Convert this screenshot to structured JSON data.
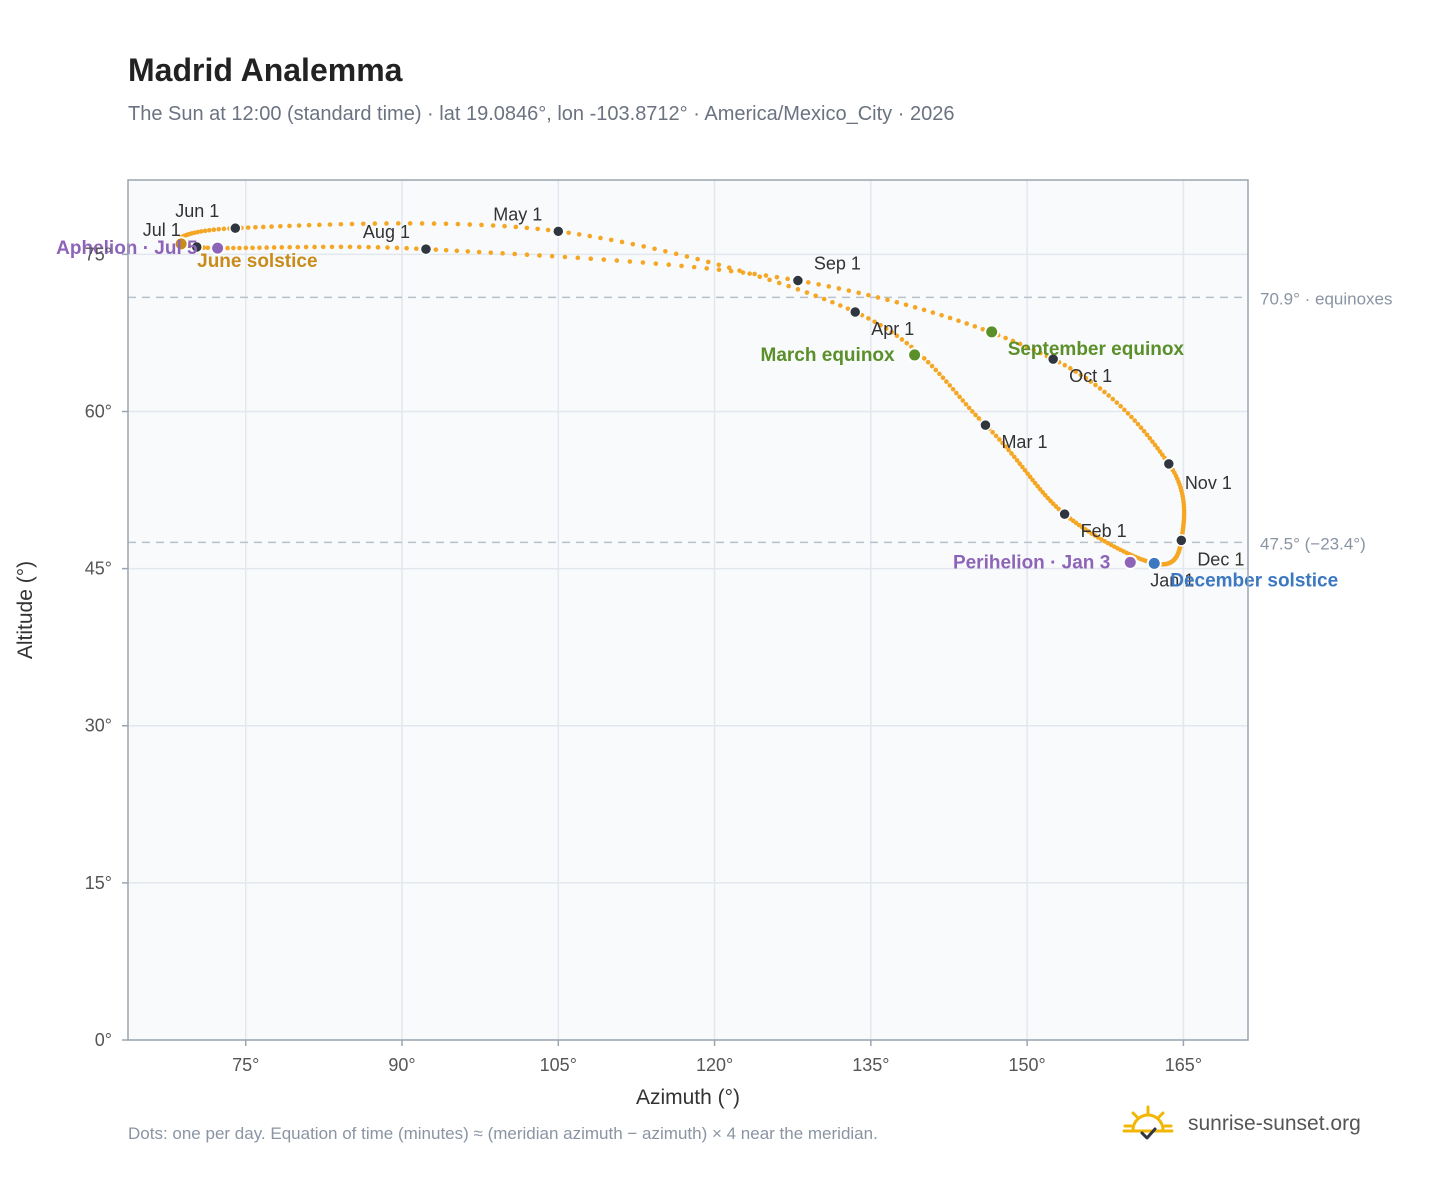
{
  "title": "Madrid Analemma",
  "subtitle": "The Sun at 12:00 (standard time) · lat 19.0846°, lon -103.8712° · America/Mexico_City · 2026",
  "footnote": "Dots: one per day. Equation of time (minutes) ≈ (meridian azimuth − azimuth) × 4 near the meridian.",
  "brand": {
    "name": "sunrise-sunset.org",
    "logo_icon": "sun-check-icon"
  },
  "colors": {
    "path": "#f5a623",
    "month_marker": "#2f3640",
    "equinox": "#5a8f29",
    "december_solstice": "#3b78c0",
    "june_solstice": "#c98b1a",
    "apsis": "#8e64b8",
    "reference_line": "#b8c2cc",
    "plot_background": "#f8fafc"
  },
  "chart_data": {
    "type": "scatter",
    "xlabel": "Azimuth (°)",
    "ylabel": "Altitude (°)",
    "xlim": [
      63.7,
      171.2
    ],
    "ylim": [
      0,
      82.1
    ],
    "xticks": [
      {
        "value": 75,
        "label": "75°"
      },
      {
        "value": 90,
        "label": "90°"
      },
      {
        "value": 105,
        "label": "105°"
      },
      {
        "value": 120,
        "label": "120°"
      },
      {
        "value": 135,
        "label": "135°"
      },
      {
        "value": 150,
        "label": "150°"
      },
      {
        "value": 165,
        "label": "165°"
      }
    ],
    "yticks": [
      {
        "value": 0,
        "label": "0°"
      },
      {
        "value": 15,
        "label": "15°"
      },
      {
        "value": 30,
        "label": "30°"
      },
      {
        "value": 45,
        "label": "45°"
      },
      {
        "value": 60,
        "label": "60°"
      },
      {
        "value": 75,
        "label": "75°"
      }
    ],
    "grid": true,
    "reference_lines": [
      {
        "altitude": 70.9,
        "label": "70.9° · equinoxes"
      },
      {
        "altitude": 47.5,
        "label": "47.5° (−23.4°)"
      }
    ],
    "month_markers": [
      {
        "label": "Jan 1",
        "day": 1,
        "az": 162.2,
        "alt": 45.5,
        "label_pos": "below"
      },
      {
        "label": "Feb 1",
        "day": 32,
        "az": 153.6,
        "alt": 50.2,
        "label_pos": "right"
      },
      {
        "label": "Mar 1",
        "day": 60,
        "az": 146.0,
        "alt": 58.7,
        "label_pos": "right"
      },
      {
        "label": "Apr 1",
        "day": 91,
        "az": 133.5,
        "alt": 69.5,
        "label_pos": "right"
      },
      {
        "label": "May 1",
        "day": 121,
        "az": 105.0,
        "alt": 77.2,
        "label_pos": "left-above"
      },
      {
        "label": "Jun 1",
        "day": 152,
        "az": 74.0,
        "alt": 77.5,
        "label_pos": "left-above"
      },
      {
        "label": "Jul 1",
        "day": 182,
        "az": 70.3,
        "alt": 75.7,
        "label_pos": "left-above"
      },
      {
        "label": "Aug 1",
        "day": 213,
        "az": 92.3,
        "alt": 75.5,
        "label_pos": "left-above"
      },
      {
        "label": "Sep 1",
        "day": 244,
        "az": 128.0,
        "alt": 72.5,
        "label_pos": "right-above"
      },
      {
        "label": "Oct 1",
        "day": 274,
        "az": 152.5,
        "alt": 65.0,
        "label_pos": "right"
      },
      {
        "label": "Nov 1",
        "day": 305,
        "az": 163.6,
        "alt": 55.0,
        "label_pos": "right-below"
      },
      {
        "label": "Dec 1",
        "day": 335,
        "az": 164.8,
        "alt": 47.7,
        "label_pos": "right-below"
      }
    ],
    "events": [
      {
        "name": "March equinox",
        "day": 79,
        "az": 139.2,
        "alt": 65.4,
        "color_key": "equinox",
        "label_pos": "left"
      },
      {
        "name": "June solstice",
        "day": 172,
        "az": 68.8,
        "alt": 76.0,
        "color_key": "june_solstice",
        "label_pos": "right"
      },
      {
        "name": "Aphelion · Jul 5",
        "day": 186,
        "az": 72.3,
        "alt": 75.6,
        "color_key": "apsis",
        "label_pos": "left"
      },
      {
        "name": "September equinox",
        "day": 266,
        "az": 146.6,
        "alt": 67.6,
        "color_key": "equinox",
        "label_pos": "right"
      },
      {
        "name": "December solstice",
        "day": 355,
        "az": 162.2,
        "alt": 45.5,
        "color_key": "december_solstice",
        "label_pos": "right"
      },
      {
        "name": "Perihelion · Jan 3",
        "day": 3,
        "az": 159.9,
        "alt": 45.6,
        "color_key": "apsis",
        "label_pos": "left"
      }
    ]
  }
}
